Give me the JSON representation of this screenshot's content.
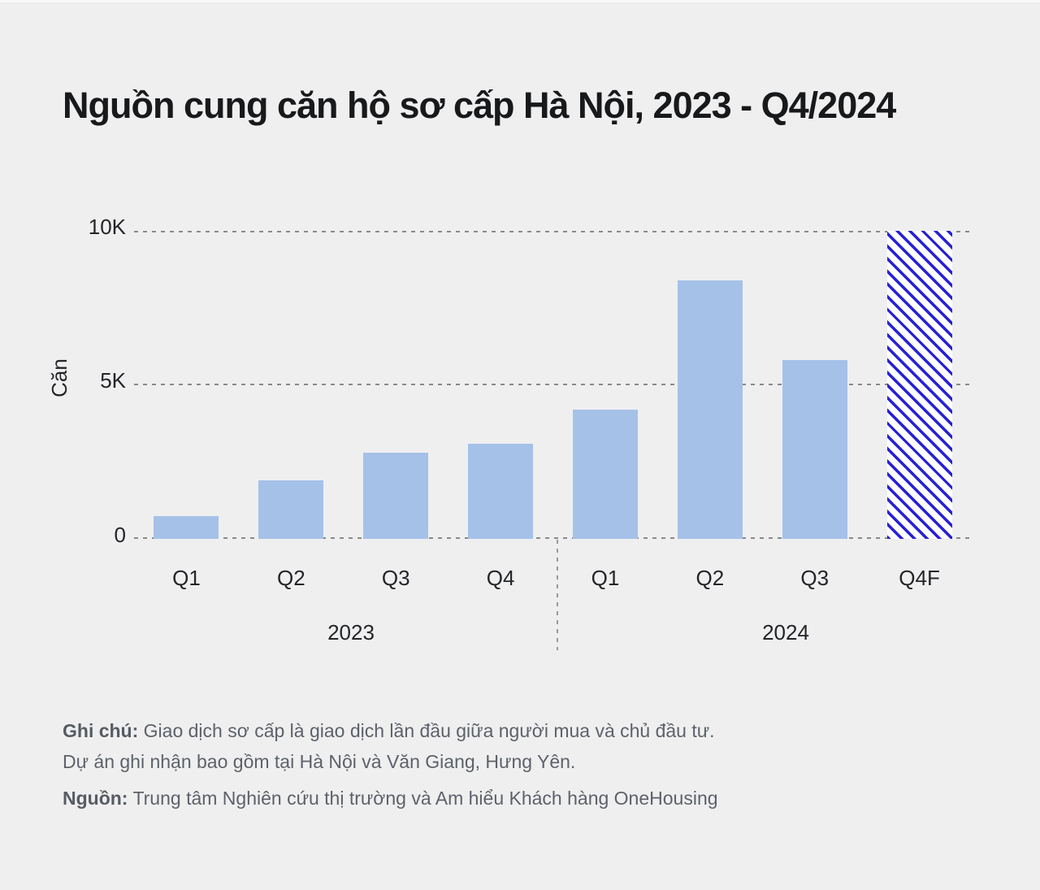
{
  "title": "Nguồn cung căn hộ sơ cấp Hà Nội, 2023 - Q4/2024",
  "chart_data": {
    "type": "bar",
    "title": "Nguồn cung căn hộ sơ cấp Hà Nội, 2023 - Q4/2024",
    "ylabel": "Căn",
    "ylim": [
      0,
      10000
    ],
    "grid": "horizontal dashed",
    "legend": "none",
    "yticks": [
      {
        "label": "10K",
        "value": 10000
      },
      {
        "label": "5K",
        "value": 5000
      },
      {
        "label": "0",
        "value": 0
      }
    ],
    "categories": [
      "Q1",
      "Q2",
      "Q3",
      "Q4",
      "Q1",
      "Q2",
      "Q3",
      "Q4F"
    ],
    "groups": [
      {
        "label": "2023",
        "span": [
          0,
          3
        ]
      },
      {
        "label": "2024",
        "span": [
          4,
          7
        ]
      }
    ],
    "values": [
      750,
      1900,
      2800,
      3100,
      4200,
      8400,
      5800,
      10000
    ],
    "bars": [
      {
        "quarter": "Q1",
        "year": "2023",
        "value": 750,
        "pattern": "solid"
      },
      {
        "quarter": "Q2",
        "year": "2023",
        "value": 1900,
        "pattern": "solid"
      },
      {
        "quarter": "Q3",
        "year": "2023",
        "value": 2800,
        "pattern": "solid"
      },
      {
        "quarter": "Q4",
        "year": "2023",
        "value": 3100,
        "pattern": "solid"
      },
      {
        "quarter": "Q1",
        "year": "2024",
        "value": 4200,
        "pattern": "solid"
      },
      {
        "quarter": "Q2",
        "year": "2024",
        "value": 8400,
        "pattern": "solid"
      },
      {
        "quarter": "Q3",
        "year": "2024",
        "value": 5800,
        "pattern": "solid"
      },
      {
        "quarter": "Q4F",
        "year": "2024",
        "value": 10000,
        "pattern": "hatched",
        "note": "forecast"
      }
    ],
    "colors": {
      "background": "#efeff0",
      "bar_solid": "#a5c1e8",
      "hatch_stripe": "#2721d4",
      "hatch_background": "#ffffff",
      "gridline": "#8a8a8a",
      "text": "#232528"
    }
  },
  "notes": {
    "note_label": "Ghi chú:",
    "note_text": " Giao dịch sơ cấp là giao dịch lần đầu giữa người mua và chủ đầu tư.",
    "note_line2": "Dự án ghi nhận bao gồm tại Hà Nội và Văn Giang, Hưng Yên.",
    "source_label": "Nguồn:",
    "source_text": " Trung tâm Nghiên cứu thị trường và Am hiểu Khách hàng OneHousing"
  }
}
